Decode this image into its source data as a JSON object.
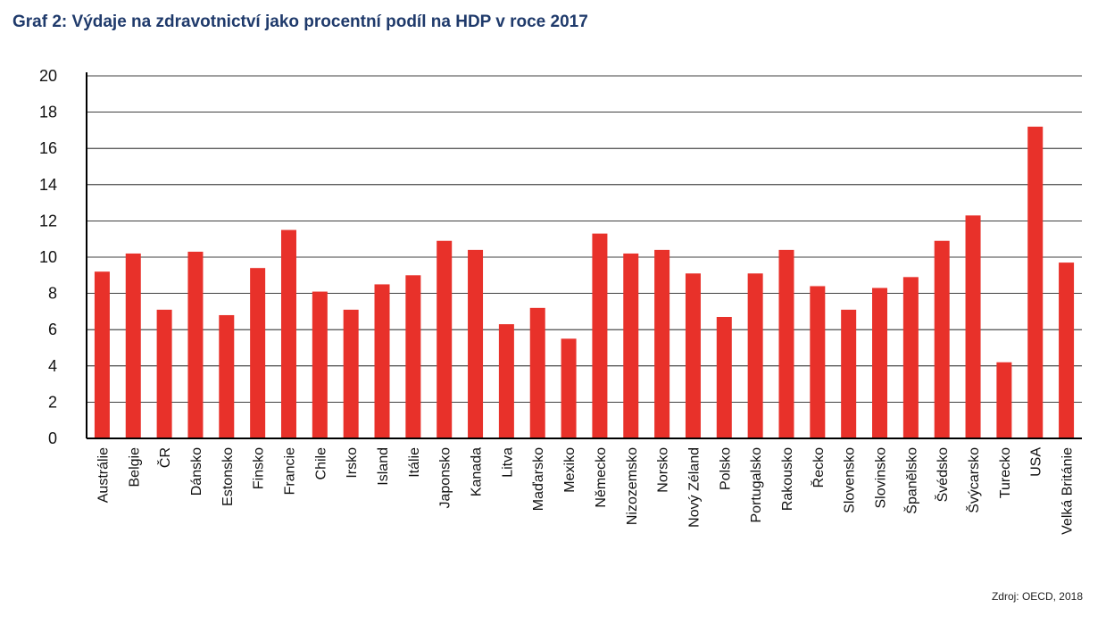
{
  "chart_data": {
    "type": "bar",
    "title": "Graf 2: Výdaje na zdravotnictví jako procentní podíl na HDP v roce 2017",
    "source": "Zdroj: OECD, 2018",
    "xlabel": "",
    "ylabel": "",
    "ylim": [
      0,
      20
    ],
    "yticks": [
      0,
      2,
      4,
      6,
      8,
      10,
      12,
      14,
      16,
      18,
      20
    ],
    "grid": true,
    "legend": "none",
    "bar_color": "#e8312a",
    "categories": [
      "Austrálie",
      "Belgie",
      "ČR",
      "Dánsko",
      "Estonsko",
      "Finsko",
      "Francie",
      "Chile",
      "Irsko",
      "Island",
      "Itálie",
      "Japonsko",
      "Kanada",
      "Litva",
      "Maďarsko",
      "Mexiko",
      "Německo",
      "Nizozemsko",
      "Norsko",
      "Nový Zéland",
      "Polsko",
      "Portugalsko",
      "Rakousko",
      "Řecko",
      "Slovensko",
      "Slovinsko",
      "Španělsko",
      "Švédsko",
      "Švýcarsko",
      "Turecko",
      "USA",
      "Velká Británie"
    ],
    "values": [
      9.2,
      10.2,
      7.1,
      10.3,
      6.8,
      9.4,
      11.5,
      8.1,
      7.1,
      8.5,
      9.0,
      10.9,
      10.4,
      6.3,
      7.2,
      5.5,
      11.3,
      10.2,
      10.4,
      9.1,
      6.7,
      9.1,
      10.4,
      8.4,
      7.1,
      8.3,
      8.9,
      10.9,
      12.3,
      4.2,
      17.2,
      9.7
    ]
  }
}
